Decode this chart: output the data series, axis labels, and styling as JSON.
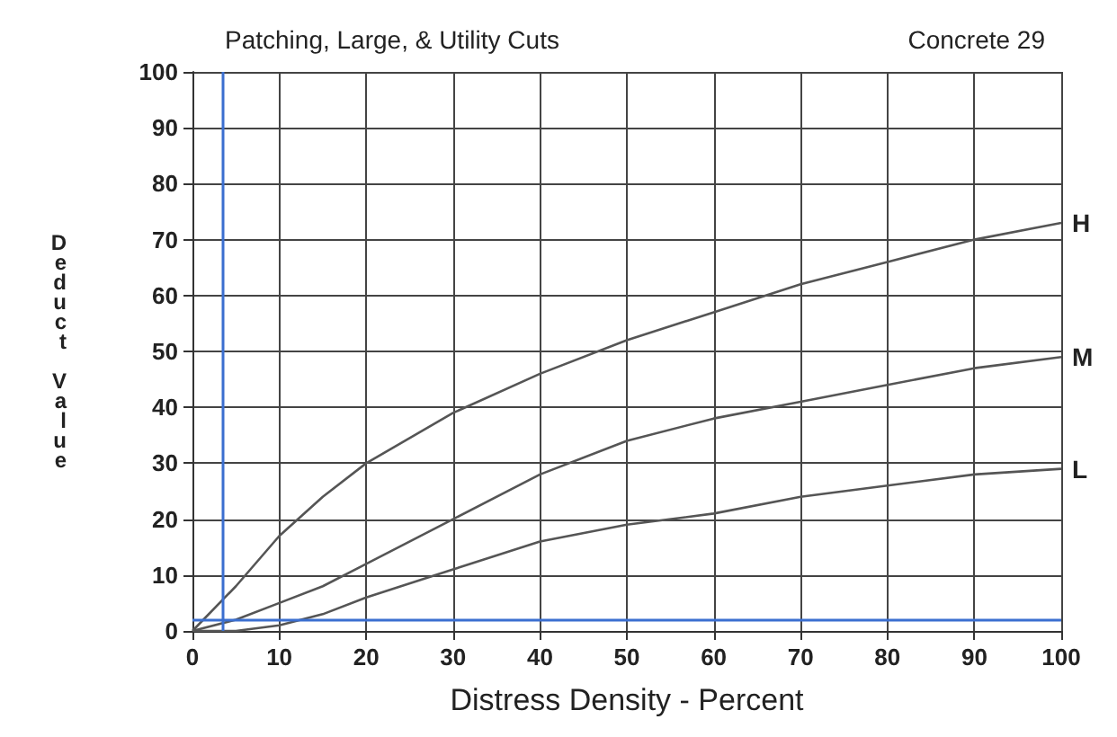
{
  "chart_data": {
    "type": "line",
    "title": "Patching, Large, & Utility Cuts",
    "subtitle": "Concrete 29",
    "xlabel": "Distress Density - Percent",
    "ylabel": "Deduct Value",
    "x": [
      0,
      5,
      10,
      15,
      20,
      30,
      40,
      50,
      60,
      70,
      80,
      90,
      100
    ],
    "series": [
      {
        "name": "H",
        "color": "#555555",
        "values": [
          0,
          8,
          17,
          24,
          30,
          39,
          46,
          52,
          57,
          62,
          66,
          70,
          73
        ]
      },
      {
        "name": "M",
        "color": "#555555",
        "values": [
          0,
          2,
          5,
          8,
          12,
          20,
          28,
          34,
          38,
          41,
          44,
          47,
          49
        ]
      },
      {
        "name": "L",
        "color": "#555555",
        "values": [
          0,
          0,
          1,
          3,
          6,
          11,
          16,
          19,
          21,
          24,
          26,
          28,
          29
        ]
      }
    ],
    "xlim": [
      0,
      100
    ],
    "xticks": [
      0,
      10,
      20,
      30,
      40,
      50,
      60,
      70,
      80,
      90,
      100
    ],
    "ylim": [
      0,
      100
    ],
    "yticks": [
      0,
      10,
      20,
      30,
      40,
      50,
      60,
      70,
      80,
      90,
      100
    ],
    "grid": true,
    "legend": false,
    "marker": "none",
    "line_style": "solid",
    "ref_lines": [
      {
        "axis": "x",
        "value": 3.5,
        "color": "#3b6fd0"
      },
      {
        "axis": "y",
        "value": 2,
        "color": "#3b6fd0"
      }
    ]
  }
}
